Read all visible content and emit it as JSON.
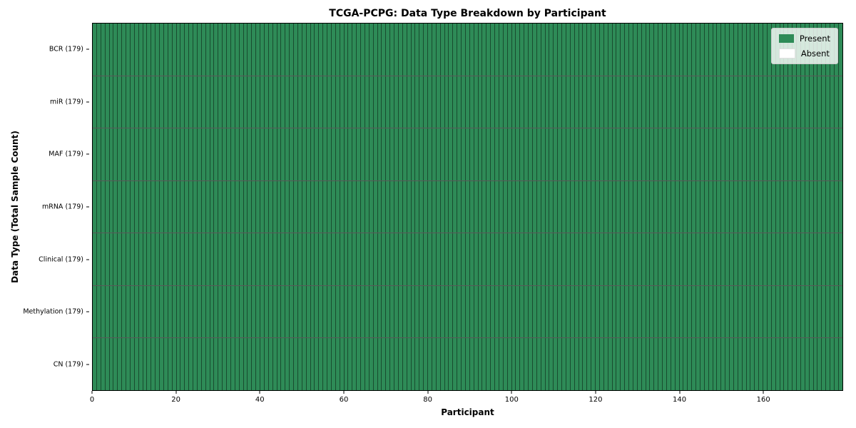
{
  "chart_data": {
    "type": "heatmap",
    "title": "TCGA-PCPG: Data Type Breakdown by Participant",
    "xlabel": "Participant",
    "ylabel": "Data Type (Total Sample Count)",
    "n_participants": 179,
    "xlim": [
      0,
      179
    ],
    "x_ticks": [
      0,
      20,
      40,
      60,
      80,
      100,
      120,
      140,
      160
    ],
    "rows": [
      {
        "label": "BCR (179)",
        "data_type": "BCR",
        "total_samples": 179,
        "present_count": 179,
        "absent_count": 0
      },
      {
        "label": "miR (179)",
        "data_type": "miR",
        "total_samples": 179,
        "present_count": 179,
        "absent_count": 0
      },
      {
        "label": "MAF (179)",
        "data_type": "MAF",
        "total_samples": 179,
        "present_count": 179,
        "absent_count": 0
      },
      {
        "label": "mRNA (179)",
        "data_type": "mRNA",
        "total_samples": 179,
        "present_count": 179,
        "absent_count": 0
      },
      {
        "label": "Clinical (179)",
        "data_type": "Clinical",
        "total_samples": 179,
        "present_count": 179,
        "absent_count": 0
      },
      {
        "label": "Methylation (179)",
        "data_type": "Methylation",
        "total_samples": 179,
        "present_count": 179,
        "absent_count": 0
      },
      {
        "label": "CN (179)",
        "data_type": "CN",
        "total_samples": 179,
        "present_count": 179,
        "absent_count": 0
      }
    ],
    "legend": {
      "position": "upper right",
      "entries": [
        {
          "label": "Present",
          "color": "#2e8b57"
        },
        {
          "label": "Absent",
          "color": "#ffffff"
        }
      ]
    },
    "colors": {
      "present": "#2e8b57",
      "absent": "#ffffff",
      "grid_line": "rgba(0,0,0,0.45)",
      "row_separator": "rgba(0,0,0,0.65)",
      "spine": "#000000"
    },
    "grid": true
  }
}
